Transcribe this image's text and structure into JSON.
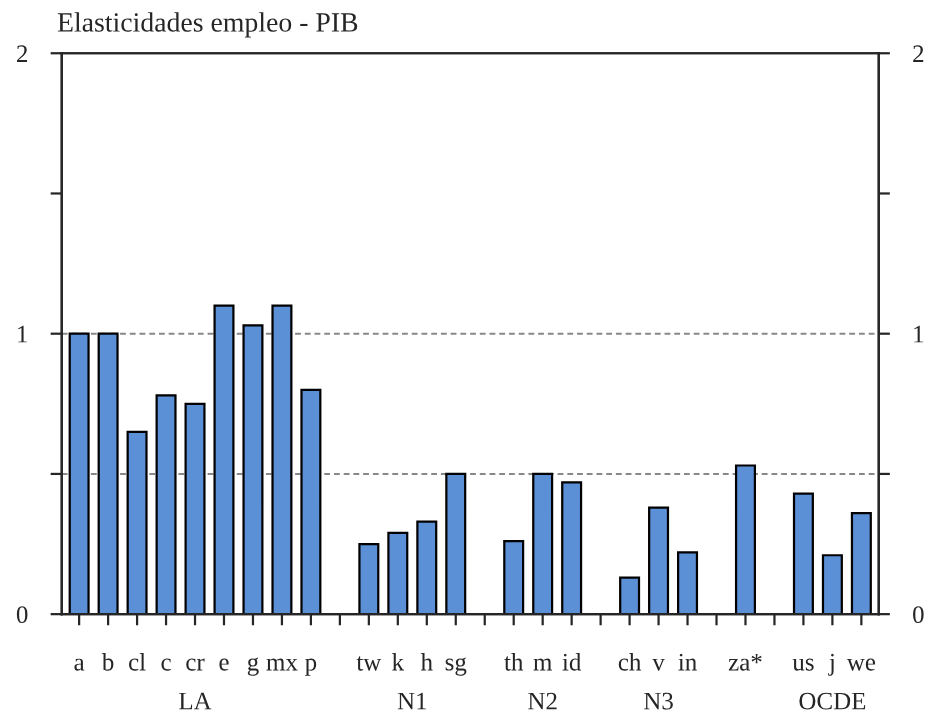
{
  "chart_data": {
    "type": "bar",
    "title": "Elasticidades empleo - PIB",
    "categories": [
      "a",
      "b",
      "cl",
      "c",
      "cr",
      "e",
      "g",
      "mx",
      "p",
      null,
      "tw",
      "k",
      "h",
      "sg",
      null,
      "th",
      "m",
      "id",
      null,
      "ch",
      "v",
      "in",
      null,
      "za*",
      null,
      "us",
      "j",
      "we"
    ],
    "values": [
      1.0,
      1.0,
      0.65,
      0.78,
      0.75,
      1.1,
      1.03,
      1.1,
      0.8,
      null,
      0.25,
      0.29,
      0.33,
      0.5,
      null,
      0.26,
      0.5,
      0.47,
      null,
      0.13,
      0.38,
      0.22,
      null,
      0.53,
      null,
      0.43,
      0.21,
      0.36
    ],
    "color": "#5b8fd6",
    "ylim": [
      0,
      2
    ],
    "yticks": [
      0,
      {
        "value": 0.5,
        "label": null
      },
      1,
      {
        "value": 1.5,
        "label": null
      },
      2
    ],
    "y2lim": [
      0,
      2
    ],
    "y2ticks": [
      0,
      {
        "value": 0.5,
        "label": null
      },
      1,
      {
        "value": 1.5,
        "label": null
      },
      2
    ],
    "ref_lines": [
      {
        "axis": "y",
        "value": 0.5,
        "line_style": "dashed",
        "color": "#888888"
      },
      {
        "axis": "y",
        "value": 1,
        "line_style": "dashed",
        "color": "#888888"
      }
    ],
    "annotations": [
      "LA",
      "N1",
      "N2",
      "N3",
      "OCDE"
    ],
    "grid": false,
    "legend": false
  }
}
